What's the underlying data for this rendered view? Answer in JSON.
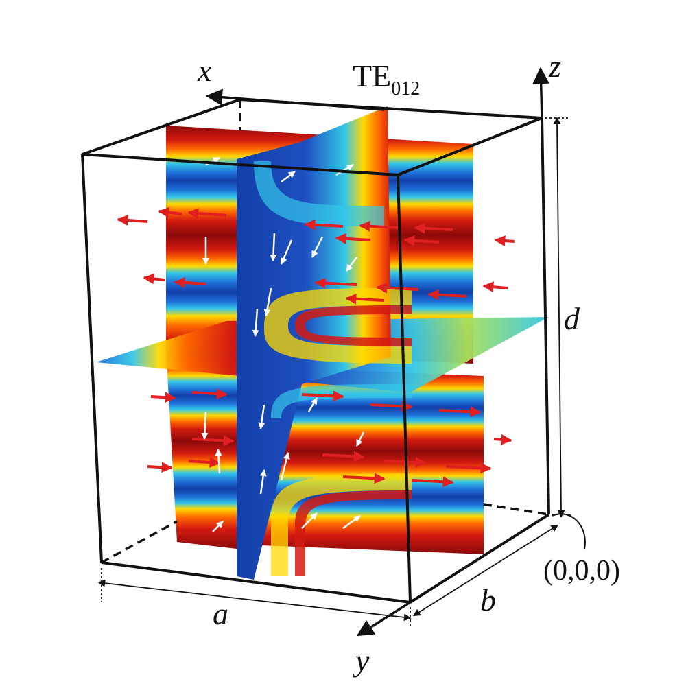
{
  "diagram": {
    "mode_label": {
      "base": "TE",
      "subscript": "012"
    },
    "axes": {
      "x": "x",
      "y": "y",
      "z": "z"
    },
    "dimensions": {
      "a": "a",
      "b": "b",
      "d": "d"
    },
    "origin_label": "(0,0,0)",
    "colormap": [
      "#8b0a0a",
      "#d21a10",
      "#ff6a00",
      "#ffd900",
      "#a8e05a",
      "#33c6e8",
      "#1f6fd8",
      "#123fa8"
    ],
    "arrow_colors": {
      "electric": "#e02020",
      "magnetic": "#ffffff"
    },
    "frame_color": "#111111"
  }
}
